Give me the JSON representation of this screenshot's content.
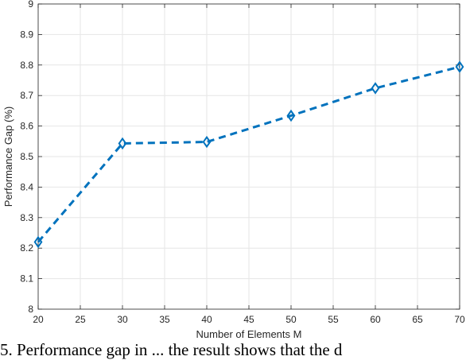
{
  "chart_data": {
    "type": "line",
    "x": [
      20,
      30,
      40,
      50,
      60,
      70
    ],
    "series": [
      {
        "values": [
          8.22,
          8.543,
          8.548,
          8.634,
          8.724,
          8.794
        ]
      }
    ],
    "xlabel": "Number of Elements M",
    "ylabel": "Performance Gap (%)",
    "xlim": [
      20,
      70
    ],
    "ylim": [
      8,
      9
    ],
    "xticks": [
      "20",
      "25",
      "30",
      "35",
      "40",
      "45",
      "50",
      "55",
      "60",
      "65",
      "70"
    ],
    "yticks": [
      "8",
      "8.1",
      "8.2",
      "8.3",
      "8.4",
      "8.5",
      "8.6",
      "8.7",
      "8.8",
      "8.9",
      "9"
    ],
    "grid": true,
    "line_style": "dashed",
    "marker": "diamond",
    "colors": {
      "line": "#0072BD",
      "grid": "#e6e6e6",
      "axis": "#262626"
    }
  },
  "caption": "5. Performance gap in ... the result shows that the d"
}
